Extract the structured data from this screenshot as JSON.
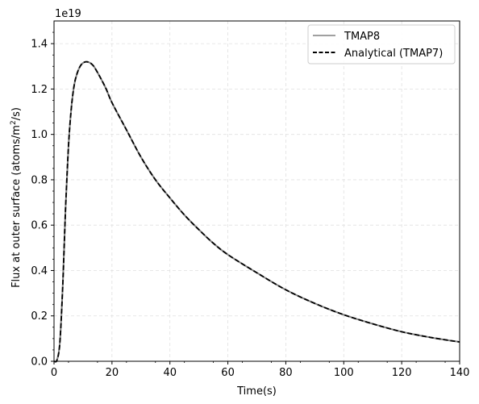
{
  "chart_data": {
    "type": "line",
    "xlabel": "Time(s)",
    "ylabel_prefix": "Flux at outer surface (atoms/m",
    "ylabel_sup": "2",
    "ylabel_suffix": "/s)",
    "y_multiplier_label": "1e19",
    "xlim": [
      0,
      140
    ],
    "ylim": [
      0,
      1.5
    ],
    "x_ticks": [
      0,
      20,
      40,
      60,
      80,
      100,
      120,
      140
    ],
    "x_tick_labels": [
      "0",
      "20",
      "40",
      "60",
      "80",
      "100",
      "120",
      "140"
    ],
    "y_ticks": [
      0,
      0.2,
      0.4,
      0.6,
      0.8,
      1.0,
      1.2,
      1.4
    ],
    "y_tick_labels": [
      "0.0",
      "0.2",
      "0.4",
      "0.6",
      "0.8",
      "1.0",
      "1.2",
      "1.4"
    ],
    "grid": true,
    "legend_position": "top-right",
    "series": [
      {
        "name": "TMAP8",
        "color": "#808080",
        "style": "solid",
        "x": [
          0,
          1,
          2,
          3,
          4,
          5,
          6,
          7,
          8,
          9,
          10,
          11,
          12,
          13,
          14,
          16,
          18,
          20,
          25,
          30,
          35,
          40,
          45,
          50,
          55,
          60,
          70,
          80,
          90,
          100,
          110,
          120,
          130,
          140
        ],
        "y": [
          0,
          0.005,
          0.08,
          0.33,
          0.68,
          0.95,
          1.12,
          1.22,
          1.27,
          1.3,
          1.315,
          1.32,
          1.318,
          1.31,
          1.295,
          1.25,
          1.2,
          1.14,
          1.02,
          0.9,
          0.8,
          0.72,
          0.645,
          0.58,
          0.52,
          0.47,
          0.39,
          0.315,
          0.255,
          0.205,
          0.165,
          0.13,
          0.105,
          0.085
        ]
      },
      {
        "name": "Analytical (TMAP7)",
        "color": "#000000",
        "style": "dashed",
        "x": [
          0,
          1,
          2,
          3,
          4,
          5,
          6,
          7,
          8,
          9,
          10,
          11,
          12,
          13,
          14,
          16,
          18,
          20,
          25,
          30,
          35,
          40,
          45,
          50,
          55,
          60,
          70,
          80,
          90,
          100,
          110,
          120,
          130,
          140
        ],
        "y": [
          0,
          0.005,
          0.08,
          0.33,
          0.68,
          0.95,
          1.12,
          1.22,
          1.27,
          1.3,
          1.315,
          1.32,
          1.318,
          1.31,
          1.295,
          1.25,
          1.2,
          1.14,
          1.02,
          0.9,
          0.8,
          0.72,
          0.645,
          0.58,
          0.52,
          0.47,
          0.39,
          0.315,
          0.255,
          0.205,
          0.165,
          0.13,
          0.105,
          0.085
        ]
      }
    ]
  }
}
